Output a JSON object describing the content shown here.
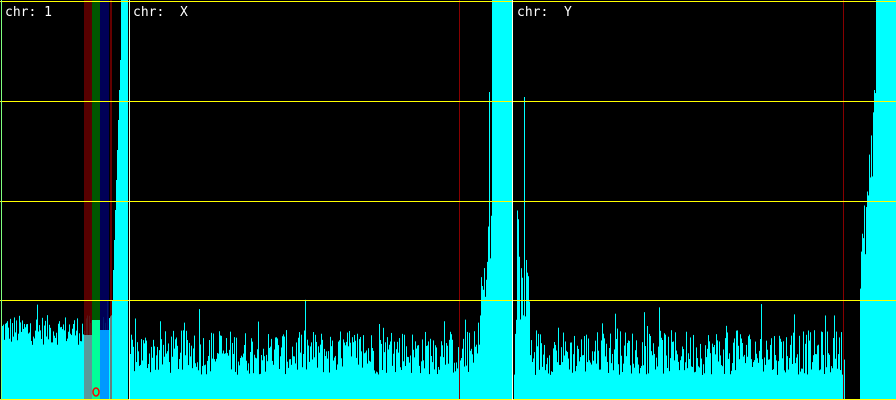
{
  "chart_data": {
    "type": "bar",
    "panels": [
      {
        "label": "chr: 1",
        "chrom": "1"
      },
      {
        "label": "chr:  X",
        "chrom": "X"
      },
      {
        "label": "chr:  Y",
        "chrom": "Y"
      }
    ],
    "grid": true,
    "colors": {
      "background": "#000000",
      "signal": "#00ffff",
      "gridline": "#ffff00",
      "panel_border": "#ffffff",
      "marker_line": "#cc0000",
      "highlight_red": "#600000",
      "highlight_green": "#006000",
      "highlight_blue": "#000060"
    }
  }
}
